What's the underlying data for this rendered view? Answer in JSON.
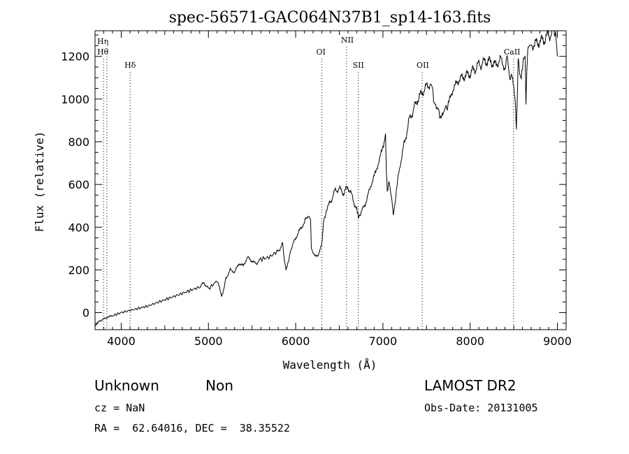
{
  "chart_data": {
    "type": "line",
    "title": "spec-56571-GAC064N37B1_sp14-163.fits",
    "xlabel": "Wavelength (Å)",
    "ylabel": "Flux (relative)",
    "xlim": [
      3700,
      9100
    ],
    "ylim": [
      -80,
      1320
    ],
    "xticks": [
      4000,
      5000,
      6000,
      7000,
      8000,
      9000
    ],
    "yticks": [
      0,
      200,
      400,
      600,
      800,
      1000,
      1200
    ],
    "grid": false,
    "series": [
      {
        "x": [
          3700,
          3750,
          3800,
          3850,
          3900,
          4000,
          4100,
          4200,
          4300,
          4400,
          4500,
          4600,
          4700,
          4800,
          4900,
          4950,
          5000,
          5100,
          5150,
          5170,
          5200,
          5250,
          5300,
          5350,
          5400,
          5450,
          5500,
          5550,
          5600,
          5700,
          5800,
          5850,
          5870,
          5890,
          5910,
          5950,
          6000,
          6050,
          6100,
          6130,
          6150,
          6170,
          6180,
          6200,
          6250,
          6280,
          6300,
          6320,
          6350,
          6400,
          6450,
          6500,
          6550,
          6600,
          6650,
          6700,
          6720,
          6750,
          6800,
          6850,
          6900,
          6950,
          7000,
          7020,
          7030,
          7040,
          7050,
          7070,
          7100,
          7120,
          7150,
          7200,
          7250,
          7300,
          7350,
          7400,
          7450,
          7500,
          7550,
          7570,
          7580,
          7600,
          7620,
          7650,
          7700,
          7720,
          7750,
          7800,
          7850,
          7900,
          7950,
          8000,
          8050,
          8100,
          8150,
          8200,
          8250,
          8300,
          8350,
          8400,
          8420,
          8450,
          8480,
          8500,
          8520,
          8530,
          8540,
          8550,
          8580,
          8600,
          8630,
          8640,
          8650,
          8660,
          8680,
          8700,
          8750,
          8800,
          8850,
          8900,
          8950,
          8980,
          9000
        ],
        "values": [
          -60,
          -40,
          -30,
          -20,
          -15,
          0,
          10,
          20,
          30,
          45,
          60,
          75,
          90,
          105,
          120,
          140,
          110,
          150,
          80,
          100,
          160,
          200,
          190,
          230,
          220,
          260,
          240,
          230,
          250,
          260,
          290,
          320,
          240,
          200,
          230,
          300,
          350,
          390,
          420,
          450,
          460,
          440,
          300,
          280,
          260,
          300,
          320,
          420,
          480,
          520,
          570,
          580,
          560,
          590,
          540,
          480,
          440,
          470,
          510,
          580,
          640,
          700,
          780,
          820,
          840,
          660,
          560,
          620,
          530,
          450,
          560,
          700,
          800,
          900,
          950,
          1000,
          1030,
          1060,
          1070,
          1040,
          1000,
          990,
          960,
          920,
          930,
          960,
          980,
          1040,
          1080,
          1100,
          1110,
          1120,
          1140,
          1160,
          1170,
          1180,
          1170,
          1160,
          1190,
          1140,
          1200,
          1110,
          1100,
          1050,
          980,
          850,
          1000,
          1180,
          1100,
          1150,
          1200,
          960,
          1150,
          1220,
          1240,
          1250,
          1260,
          1270,
          1280,
          1300,
          1310,
          1320,
          1200
        ]
      }
    ],
    "lines": [
      {
        "label": "Hη",
        "x": 3835
      },
      {
        "label": "Hθ",
        "x": 3797
      },
      {
        "label": "Hδ",
        "x": 4102
      },
      {
        "label": "OI",
        "x": 6300
      },
      {
        "label": "NII",
        "x": 6583
      },
      {
        "label": "SII",
        "x": 6717
      },
      {
        "label": "OII",
        "x": 7450
      },
      {
        "label": "CaII",
        "x": 8498
      }
    ]
  },
  "info": {
    "class": "Unknown",
    "subclass": "Non",
    "survey": "LAMOST DR2",
    "cz": "cz = NaN",
    "obs_date": "Obs-Date: 20131005",
    "coords": "RA =  62.64016, DEC =  38.35522"
  }
}
